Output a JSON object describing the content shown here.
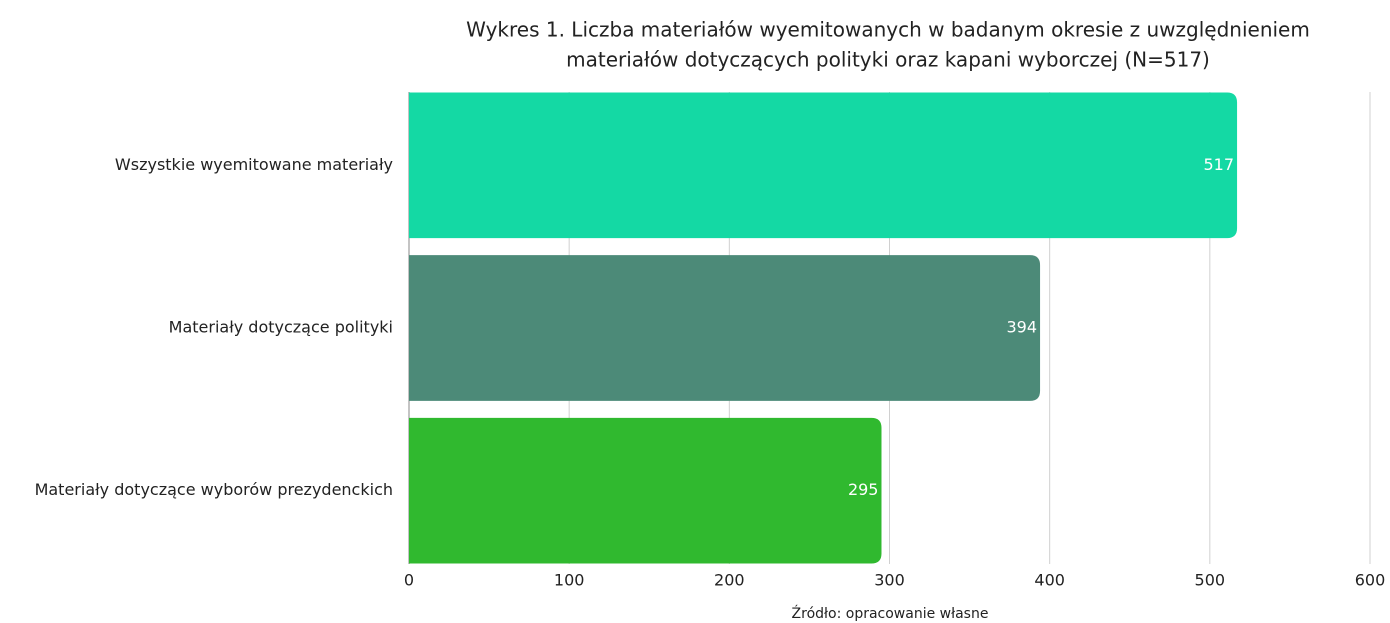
{
  "chart_data": {
    "type": "hbar",
    "title": [
      "Wykres 1. Liczba materiałów wyemitowanych w badanym okresie z uwzględnieniem",
      "materiałów dotyczących polityki oraz kapani wyborczej (N=517)"
    ],
    "categories": [
      "Wszystkie wyemitowane materiały",
      "Materiały dotyczące polityki",
      "Materiały dotyczące wyborów prezydenckich"
    ],
    "values": [
      517,
      394,
      295
    ],
    "colors": [
      "#14d9a4",
      "#4c8a78",
      "#30b92f"
    ],
    "xlim": [
      0,
      600
    ],
    "xticks": [
      0,
      100,
      200,
      300,
      400,
      500,
      600
    ],
    "grid": true,
    "source": "Źródło: opracowanie własne"
  }
}
